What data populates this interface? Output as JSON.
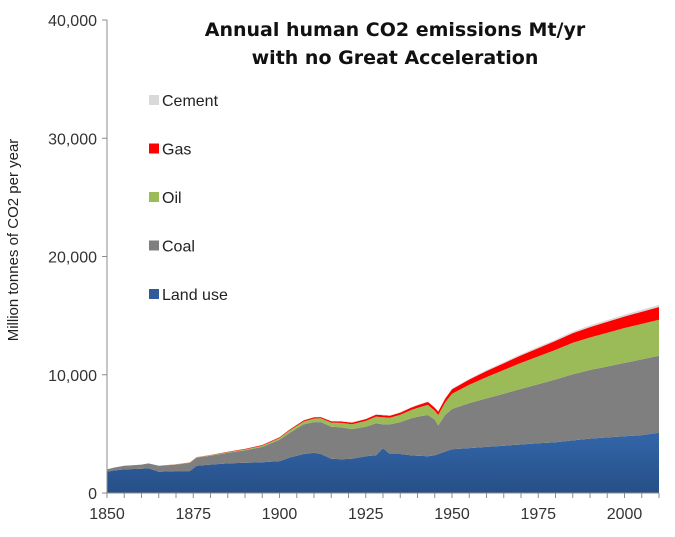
{
  "chart_data": {
    "type": "area",
    "stacked": true,
    "title": "Annual human CO2 emissions  Mt/yr",
    "subtitle": "with no Great Acceleration",
    "xlabel": "",
    "ylabel": "Million tonnes of CO2 per year",
    "xlim": [
      1850,
      2010
    ],
    "ylim": [
      0,
      40000
    ],
    "x_ticks": [
      1850,
      1875,
      1900,
      1925,
      1950,
      1975,
      2000
    ],
    "x_tick_labels": [
      "1850",
      "1875",
      "1900",
      "1925",
      "1950",
      "1975",
      "2000"
    ],
    "y_ticks": [
      0,
      10000,
      20000,
      30000,
      40000
    ],
    "y_tick_labels": [
      "0",
      "10,000",
      "20,000",
      "30,000",
      "40,000"
    ],
    "grid": false,
    "legend": {
      "position": "top-left",
      "entries": [
        "Cement",
        "Gas",
        "Oil",
        "Coal",
        "Land use"
      ]
    },
    "x": [
      1850,
      1852,
      1855,
      1860,
      1862,
      1865,
      1870,
      1874,
      1876,
      1880,
      1885,
      1890,
      1895,
      1900,
      1903,
      1907,
      1910,
      1912,
      1915,
      1918,
      1921,
      1925,
      1928,
      1930,
      1932,
      1935,
      1938,
      1940,
      1943,
      1945,
      1946,
      1948,
      1950,
      1955,
      1960,
      1965,
      1970,
      1975,
      1980,
      1985,
      1990,
      1995,
      2000,
      2005,
      2010
    ],
    "series": [
      {
        "name": "Land use",
        "color": "#2f5b9a",
        "values": [
          1800,
          1900,
          2000,
          2050,
          2100,
          1800,
          1850,
          1850,
          2300,
          2400,
          2500,
          2550,
          2600,
          2700,
          3000,
          3300,
          3400,
          3300,
          2900,
          2850,
          2900,
          3100,
          3200,
          3800,
          3300,
          3300,
          3200,
          3150,
          3100,
          3200,
          3300,
          3500,
          3700,
          3800,
          3900,
          4000,
          4100,
          4200,
          4300,
          4450,
          4600,
          4700,
          4800,
          4900,
          5100
        ]
      },
      {
        "name": "Coal",
        "color": "#7f7f7f",
        "values": [
          200,
          250,
          300,
          350,
          400,
          500,
          550,
          700,
          700,
          750,
          900,
          1050,
          1300,
          1800,
          2100,
          2500,
          2600,
          2700,
          2700,
          2700,
          2500,
          2500,
          2700,
          2000,
          2500,
          2700,
          3100,
          3300,
          3500,
          3000,
          2400,
          3100,
          3400,
          3800,
          4100,
          4400,
          4700,
          5000,
          5300,
          5600,
          5800,
          6000,
          6200,
          6400,
          6500
        ]
      },
      {
        "name": "Oil",
        "color": "#9bbb59",
        "values": [
          0,
          0,
          0,
          0,
          0,
          10,
          20,
          30,
          30,
          40,
          60,
          80,
          100,
          150,
          200,
          250,
          300,
          320,
          350,
          380,
          420,
          500,
          560,
          600,
          560,
          620,
          700,
          750,
          850,
          750,
          900,
          1050,
          1300,
          1550,
          1800,
          2000,
          2200,
          2350,
          2500,
          2650,
          2750,
          2850,
          2950,
          3000,
          3050
        ]
      },
      {
        "name": "Gas",
        "color": "#ff0000",
        "values": [
          0,
          0,
          0,
          0,
          0,
          0,
          5,
          10,
          10,
          20,
          30,
          50,
          60,
          70,
          80,
          90,
          100,
          100,
          110,
          120,
          130,
          150,
          170,
          180,
          170,
          180,
          200,
          220,
          250,
          260,
          280,
          320,
          380,
          450,
          520,
          580,
          640,
          700,
          760,
          820,
          880,
          930,
          980,
          1030,
          1080
        ]
      },
      {
        "name": "Cement",
        "color": "#d9d9d9",
        "values": [
          0,
          0,
          0,
          0,
          0,
          0,
          0,
          0,
          0,
          0,
          5,
          5,
          10,
          15,
          20,
          25,
          30,
          30,
          30,
          30,
          30,
          35,
          40,
          40,
          40,
          45,
          50,
          50,
          50,
          50,
          50,
          55,
          60,
          70,
          80,
          90,
          100,
          110,
          120,
          130,
          140,
          150,
          160,
          170,
          180
        ]
      }
    ]
  }
}
